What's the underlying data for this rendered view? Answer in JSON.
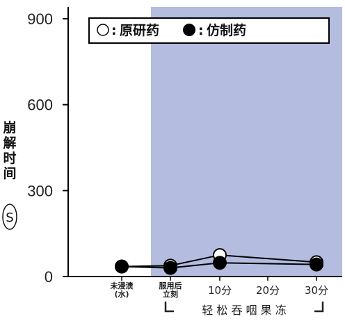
{
  "chart_data": {
    "type": "line",
    "ylabel_chars": [
      "崩",
      "解",
      "时",
      "间"
    ],
    "ylabel_unit": "S",
    "ylim": [
      0,
      900
    ],
    "yticks": [
      {
        "value": 0,
        "label": "0"
      },
      {
        "value": 300,
        "label": "300"
      },
      {
        "value": 600,
        "label": "600"
      },
      {
        "value": 900,
        "label": "900"
      }
    ],
    "categories": [
      {
        "key": "water",
        "lines": [
          "未浸渍",
          "(水)"
        ],
        "style": "small"
      },
      {
        "key": "immediate",
        "lines": [
          "服用后",
          "立刻"
        ],
        "style": "small"
      },
      {
        "key": "10min",
        "lines": [
          "10分"
        ],
        "style": "normal"
      },
      {
        "key": "20min",
        "lines": [
          "20分"
        ],
        "style": "normal"
      },
      {
        "key": "30min",
        "lines": [
          "30分"
        ],
        "style": "normal"
      }
    ],
    "bracket_label": "轻 松 吞 咽 果 冻",
    "shaded_region_from_category": "immediate",
    "shaded_color": "#b4bce0",
    "series": [
      {
        "name": "原研药",
        "marker": "open-circle",
        "color": "#000000",
        "points": [
          {
            "x": "water",
            "y": 35
          },
          {
            "x": "immediate",
            "y": 38
          },
          {
            "x": "10min",
            "y": 75
          },
          {
            "x": "30min",
            "y": 50
          }
        ]
      },
      {
        "name": "仿制药",
        "marker": "filled-circle",
        "color": "#000000",
        "points": [
          {
            "x": "water",
            "y": 35
          },
          {
            "x": "immediate",
            "y": 30
          },
          {
            "x": "10min",
            "y": 48
          },
          {
            "x": "30min",
            "y": 42
          }
        ]
      }
    ],
    "legend": {
      "placement": "top-right",
      "items": [
        {
          "symbol": "○",
          "separator": ":",
          "label": "原研药"
        },
        {
          "symbol": "●",
          "separator": ":",
          "label": "仿制药"
        }
      ]
    },
    "grid": false
  }
}
